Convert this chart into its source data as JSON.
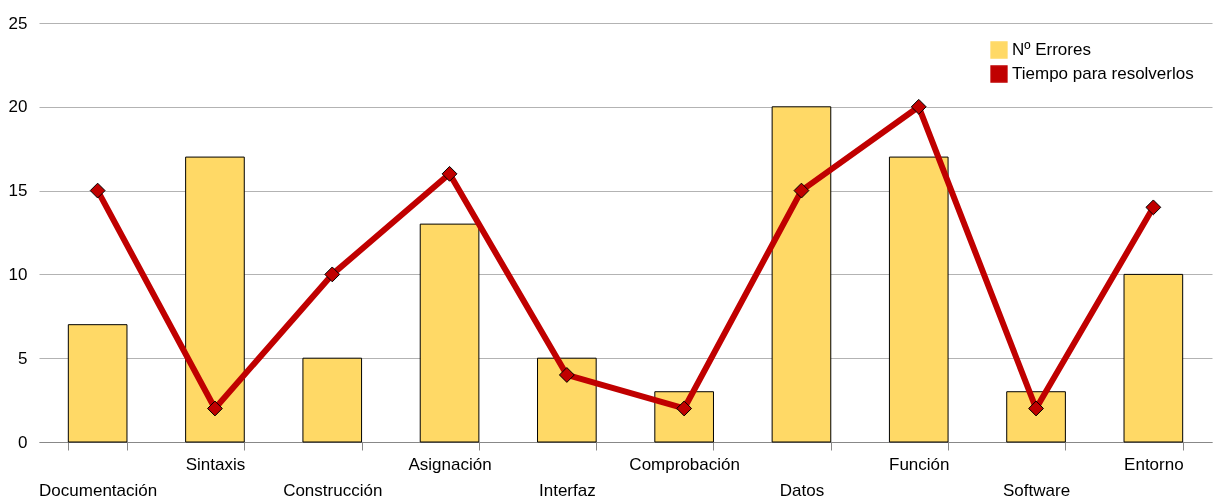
{
  "chart_data": {
    "type": "bar",
    "categories": [
      "Documentación",
      "Sintaxis",
      "Construcción",
      "Asignación",
      "Interfaz",
      "Comprobación",
      "Datos",
      "Función",
      "Software",
      "Entorno"
    ],
    "series": [
      {
        "name": "Nº Errores",
        "color": "#ffd966",
        "values": [
          7,
          17,
          5,
          13,
          5,
          3,
          20,
          17,
          3,
          10
        ]
      },
      {
        "name": "Tiempo para resolverlos",
        "type": "line",
        "color": "#c00000",
        "values": [
          15,
          2,
          10,
          16,
          4,
          2,
          15,
          20,
          2,
          14
        ]
      }
    ],
    "ylim": [
      0,
      25
    ],
    "yticks": [
      0,
      5,
      10,
      15,
      20,
      25
    ],
    "grid": "y",
    "legend": "top right",
    "marker": "diamond"
  }
}
